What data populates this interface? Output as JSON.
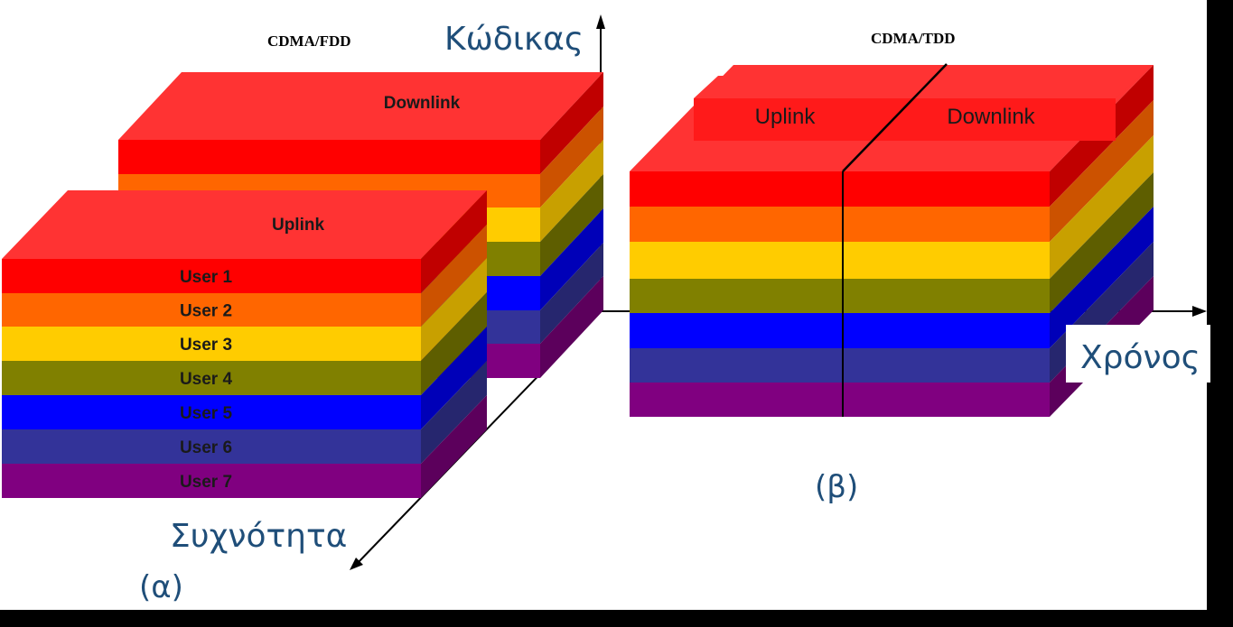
{
  "diagram": {
    "fdd_title": "CDMA/FDD",
    "tdd_title": "CDMA/TDD",
    "axis_code": "Κώδικας",
    "axis_time": "Χρόνος",
    "axis_frequency": "Συχνότητα",
    "label_a": "(α)",
    "label_b": "(β)",
    "fdd_back_label": "Downlink",
    "fdd_front_label": "Uplink",
    "tdd_uplink_label": "Uplink",
    "tdd_downlink_label": "Downlink",
    "users": [
      "User 1",
      "User 2",
      "User 3",
      "User 4",
      "User 5",
      "User 6",
      "User 7"
    ],
    "colors": {
      "background": "#ffffff",
      "top": "#ff3333",
      "layers": [
        "#ff0000",
        "#ff6600",
        "#ffcc00",
        "#808000",
        "#0000ff",
        "#333399",
        "#800080"
      ],
      "layers_side": [
        "#c00000",
        "#cc5200",
        "#c8a000",
        "#5e5e00",
        "#0000b8",
        "#26266e",
        "#5c005c"
      ],
      "axis_label": "#1f4e79"
    }
  }
}
